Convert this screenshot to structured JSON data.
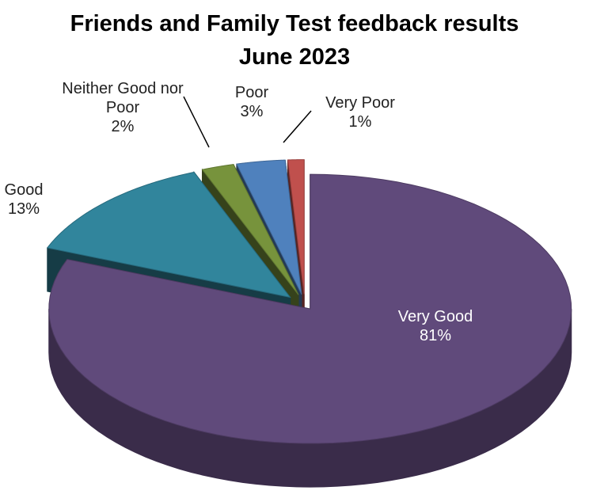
{
  "chart_data": {
    "type": "pie",
    "title": "Friends and Family Test feedback results",
    "subtitle": "June 2023",
    "categories": [
      "Very Good",
      "Good",
      "Neither Good nor Poor",
      "Poor",
      "Very Poor"
    ],
    "values": [
      81,
      13,
      2,
      3,
      1
    ],
    "value_labels": [
      "81%",
      "13%",
      "2%",
      "3%",
      "1%"
    ],
    "colors": [
      "#604a7b",
      "#31859c",
      "#77933c",
      "#4f81bd",
      "#c0504d"
    ]
  }
}
